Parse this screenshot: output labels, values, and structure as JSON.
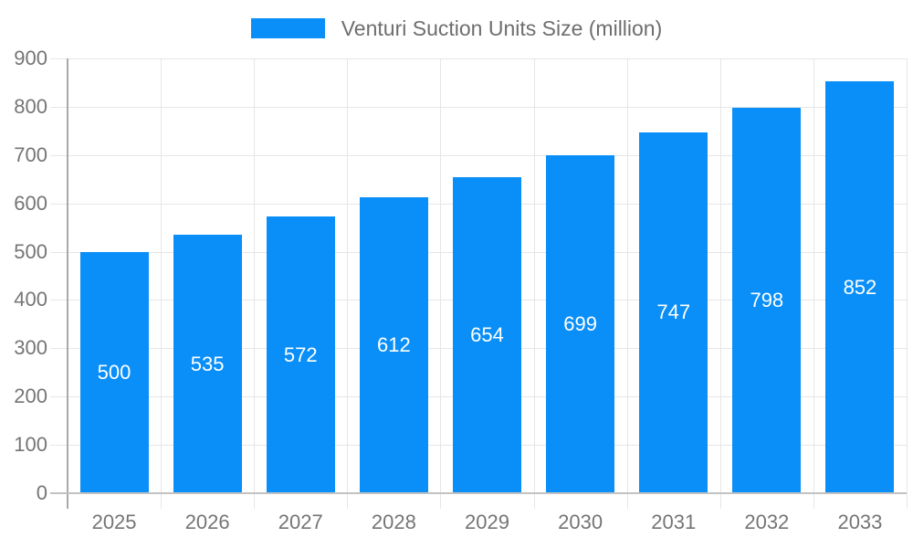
{
  "chart_data": {
    "type": "bar",
    "title": "Venturi Suction Units Size (million)",
    "legend": [
      "Venturi Suction Units Size (million)"
    ],
    "legend_position": "top",
    "categories": [
      "2025",
      "2026",
      "2027",
      "2028",
      "2029",
      "2030",
      "2031",
      "2032",
      "2033"
    ],
    "values": [
      500,
      535,
      572,
      612,
      654,
      699,
      747,
      798,
      852
    ],
    "xlabel": "",
    "ylabel": "",
    "ylim": [
      0,
      900
    ],
    "ytick_step": 100,
    "ytick_labels": [
      "0",
      "100",
      "200",
      "300",
      "400",
      "500",
      "600",
      "700",
      "800",
      "900"
    ],
    "grid": true,
    "colors": {
      "bar": "#0A8FF8",
      "value_label": "#ffffff",
      "axis_text": "#757575",
      "legend_text": "#6e6e6e",
      "gridline": "#e6e6e6",
      "axis_line": "#a9a9a9",
      "baseline": "#c2c2c2",
      "background": "#ffffff"
    }
  }
}
